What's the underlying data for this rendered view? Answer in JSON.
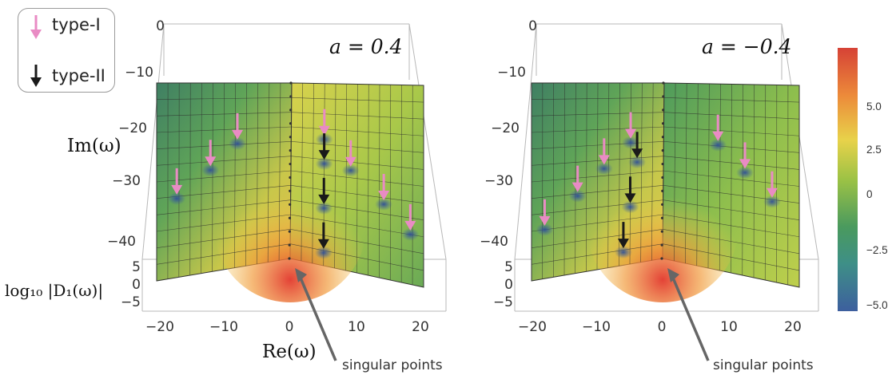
{
  "legend": {
    "type1_label": "type-I",
    "type2_label": "type-II",
    "type1_color": "#e98bc4",
    "type2_color": "#1a1a1a"
  },
  "labels": {
    "im_axis": "Im(ω)",
    "re_axis": "Re(ω)",
    "z_axis": "log₁₀ |D₁(ω)|",
    "annotation": "singular points"
  },
  "colorbar": {
    "ticks": [
      "5.0",
      "2.5",
      "0",
      "−2.5",
      "−5.0"
    ],
    "stops": [
      "#d64236",
      "#ec8a3a",
      "#e8d24a",
      "#9cc245",
      "#4a9a5e",
      "#3e8f87",
      "#3d5f9e"
    ]
  },
  "chart_data": [
    {
      "type": "surface",
      "panel": "left",
      "title": "a = 0.4",
      "x_ticks": [
        "−20",
        "−10",
        "0",
        "10",
        "20"
      ],
      "y_ticks": [
        "0",
        "−10",
        "−20",
        "−30",
        "−40"
      ],
      "z_ticks": [
        "5",
        "0",
        "−5"
      ],
      "xlim": [
        -20,
        20
      ],
      "ylim": [
        -45,
        0
      ],
      "zlim": [
        -5,
        5
      ],
      "type1_poles": [
        {
          "re": -17,
          "im": -26
        },
        {
          "re": -12,
          "im": -20
        },
        {
          "re": -8,
          "im": -14
        },
        {
          "re": 5,
          "im": -13
        },
        {
          "re": 9,
          "im": -20
        },
        {
          "re": 14,
          "im": -27
        },
        {
          "re": 18,
          "im": -33
        }
      ],
      "type2_poles": [
        {
          "re": 5,
          "im": -19
        },
        {
          "re": 5,
          "im": -30
        },
        {
          "re": 5,
          "im": -41
        }
      ]
    },
    {
      "type": "surface",
      "panel": "right",
      "title": "a = −0.4",
      "x_ticks": [
        "−20",
        "−10",
        "0",
        "10",
        "20"
      ],
      "y_ticks": [
        "0",
        "−10",
        "−20",
        "−30",
        "−40"
      ],
      "z_ticks": [
        "5",
        "0",
        "−5"
      ],
      "xlim": [
        -20,
        20
      ],
      "ylim": [
        -45,
        0
      ],
      "zlim": [
        -5,
        5
      ],
      "type1_poles": [
        {
          "re": -18,
          "im": -33
        },
        {
          "re": -13,
          "im": -26
        },
        {
          "re": -9,
          "im": -20
        },
        {
          "re": -5,
          "im": -14
        },
        {
          "re": 8,
          "im": -14
        },
        {
          "re": 12,
          "im": -20
        },
        {
          "re": 16,
          "im": -26
        }
      ],
      "type2_poles": [
        {
          "re": -4,
          "im": -19
        },
        {
          "re": -5,
          "im": -30
        },
        {
          "re": -6,
          "im": -41
        }
      ]
    }
  ]
}
